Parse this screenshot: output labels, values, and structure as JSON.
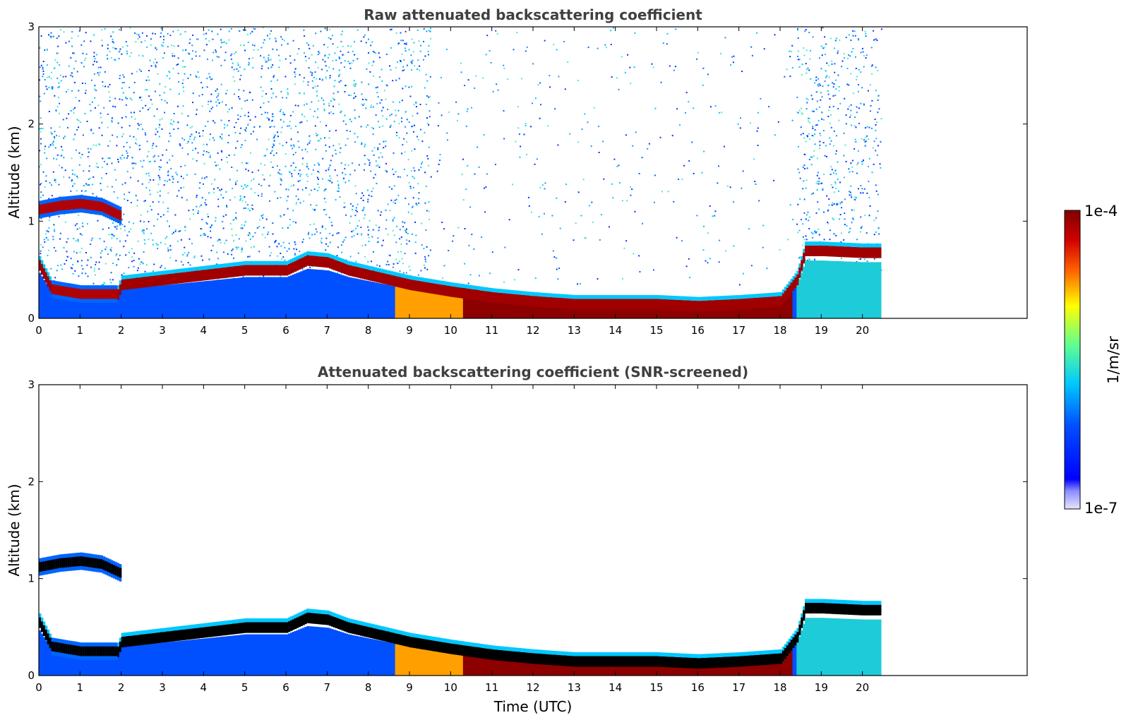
{
  "chart_data": [
    {
      "type": "heatmap",
      "title": "Raw attenuated backscattering coefficient",
      "xlabel": "",
      "ylabel": "Altitude (km)",
      "xlim": [
        0,
        24
      ],
      "ylim": [
        0,
        3
      ],
      "xticks": [
        0,
        1,
        2,
        3,
        4,
        5,
        6,
        7,
        8,
        9,
        10,
        11,
        12,
        13,
        14,
        15,
        16,
        17,
        18,
        19,
        20
      ],
      "yticks": [
        0,
        1,
        2,
        3
      ],
      "data_end_time": 20.45,
      "noise": true,
      "layers": [
        {
          "x": [
            0,
            0.5,
            1.0,
            1.5,
            2.0
          ],
          "y": [
            1.12,
            1.16,
            1.18,
            1.15,
            1.05
          ]
        },
        {
          "x": [
            0.3,
            1.0,
            1.9
          ],
          "y": [
            0.3,
            0.25,
            0.25
          ]
        }
      ],
      "pbl_top": {
        "x": [
          2.0,
          3.0,
          4.0,
          5.0,
          6.0,
          6.5,
          7.0,
          7.5,
          8.0,
          9.0,
          10.0,
          11.0,
          12.0,
          13.0,
          14.0,
          15.0,
          16.0,
          17.0,
          18.0,
          18.4,
          18.6,
          19.0,
          20.0,
          20.45
        ],
        "y": [
          0.35,
          0.4,
          0.45,
          0.5,
          0.5,
          0.6,
          0.58,
          0.5,
          0.45,
          0.35,
          0.28,
          0.22,
          0.18,
          0.15,
          0.15,
          0.15,
          0.13,
          0.15,
          0.18,
          0.4,
          0.7,
          0.7,
          0.68,
          0.68
        ]
      }
    },
    {
      "type": "heatmap",
      "title": "Attenuated backscattering coefficient (SNR-screened)",
      "xlabel": "Time (UTC)",
      "ylabel": "Altitude (km)",
      "xlim": [
        0,
        24
      ],
      "ylim": [
        0,
        3
      ],
      "xticks": [
        0,
        1,
        2,
        3,
        4,
        5,
        6,
        7,
        8,
        9,
        10,
        11,
        12,
        13,
        14,
        15,
        16,
        17,
        18,
        19,
        20
      ],
      "yticks": [
        0,
        1,
        2,
        3
      ],
      "data_end_time": 20.45,
      "noise": false,
      "layers": [
        {
          "x": [
            0,
            0.5,
            1.0,
            1.5,
            2.0
          ],
          "y": [
            1.12,
            1.16,
            1.18,
            1.15,
            1.05
          ]
        },
        {
          "x": [
            0.3,
            1.0,
            1.9
          ],
          "y": [
            0.3,
            0.25,
            0.25
          ]
        }
      ],
      "pbl_top": {
        "x": [
          2.0,
          3.0,
          4.0,
          5.0,
          6.0,
          6.5,
          7.0,
          7.5,
          8.0,
          9.0,
          10.0,
          11.0,
          12.0,
          13.0,
          14.0,
          15.0,
          16.0,
          17.0,
          18.0,
          18.4,
          18.6,
          19.0,
          20.0,
          20.45
        ],
        "y": [
          0.35,
          0.4,
          0.45,
          0.5,
          0.5,
          0.6,
          0.58,
          0.5,
          0.45,
          0.35,
          0.28,
          0.22,
          0.18,
          0.15,
          0.15,
          0.15,
          0.13,
          0.15,
          0.18,
          0.4,
          0.7,
          0.7,
          0.68,
          0.68
        ]
      }
    }
  ],
  "colorbar": {
    "label": "1/m/sr",
    "max_label": "1e-4",
    "min_label": "1e-7",
    "colormap": "jet",
    "colors": [
      "#e6e6ff",
      "#0000ff",
      "#00c8ff",
      "#60ff90",
      "#ffff00",
      "#ff6000",
      "#c80000",
      "#800000"
    ]
  }
}
